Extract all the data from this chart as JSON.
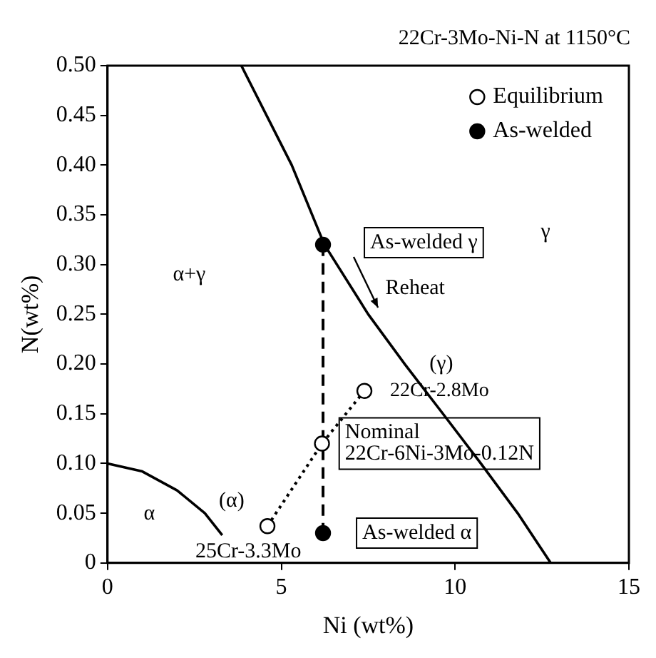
{
  "chart_data": {
    "type": "line",
    "title": "22Cr-3Mo-Ni-N at 1150°C",
    "xlabel": "Ni (wt%)",
    "ylabel": "N(wt%)",
    "xlim": [
      0,
      15
    ],
    "xticks": [
      0,
      5,
      10,
      15
    ],
    "ylim": [
      0,
      0.5
    ],
    "yticks": [
      0,
      0.05,
      {
        "value": 0.1,
        "label": "0.10"
      },
      0.15,
      {
        "value": 0.2,
        "label": "0.20"
      },
      0.25,
      {
        "value": 0.3,
        "label": "0.30"
      },
      0.35,
      {
        "value": 0.4,
        "label": "0.40"
      },
      0.45,
      {
        "value": 0.5,
        "label": "0.50"
      }
    ],
    "grid": false,
    "legend": "top right",
    "series": [
      {
        "color": "#000000",
        "marker": "none",
        "line_style": "solid",
        "x": [
          3.85,
          5.3,
          6.24,
          7.5,
          8.55,
          9.65,
          10.74,
          11.8,
          12.75
        ],
        "values": [
          0.5,
          0.4,
          0.32,
          0.25,
          0.2,
          0.15,
          0.1,
          0.05,
          0
        ]
      },
      {
        "color": "#000000",
        "marker": "none",
        "line_style": "solid",
        "x": [
          0,
          1,
          2,
          2.8,
          3.3
        ],
        "values": [
          0.1,
          0.092,
          0.073,
          0.05,
          0.028
        ]
      },
      {
        "name": "Equilibrium",
        "color": "#000000",
        "marker": "circle",
        "line_style": "dotted",
        "x": [
          4.6,
          6.17,
          7.39
        ],
        "values": [
          0.037,
          0.12,
          0.173
        ]
      },
      {
        "name": "As-welded",
        "color": "#000000",
        "marker": "circle",
        "line_style": "dashed",
        "x": [
          6.2,
          6.2
        ],
        "values": [
          0.32,
          0.03
        ]
      }
    ],
    "annotations": [
      "α+γ",
      "γ",
      "Reheat",
      "(γ)",
      "22Cr-2.8Mo",
      "(α)",
      "α",
      "25Cr-3.3Mo",
      "As-welded γ",
      "Nominal\n22Cr-6Ni-3Mo-0.12N",
      "As-welded α"
    ]
  }
}
